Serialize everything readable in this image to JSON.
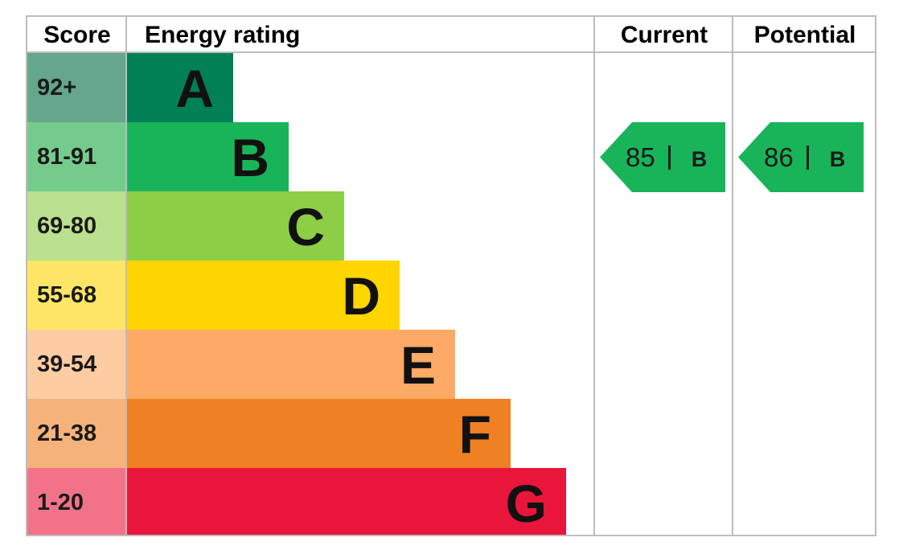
{
  "chart_data": {
    "type": "bar",
    "headers": {
      "score": "Score",
      "rating": "Energy rating",
      "current": "Current",
      "potential": "Potential"
    },
    "bands": [
      {
        "letter": "A",
        "range": "92+",
        "color": "#008054",
        "score_color": "#66a68a"
      },
      {
        "letter": "B",
        "range": "81-91",
        "color": "#19b459",
        "score_color": "#75cb8c"
      },
      {
        "letter": "C",
        "range": "69-80",
        "color": "#8dce46",
        "score_color": "#bbe08f"
      },
      {
        "letter": "D",
        "range": "55-68",
        "color": "#ffd500",
        "score_color": "#ffe566"
      },
      {
        "letter": "E",
        "range": "39-54",
        "color": "#fcaa65",
        "score_color": "#fdcca3"
      },
      {
        "letter": "F",
        "range": "21-38",
        "color": "#ef8023",
        "score_color": "#f5b37b"
      },
      {
        "letter": "G",
        "range": "1-20",
        "color": "#e9153b",
        "score_color": "#f27389"
      }
    ],
    "current": {
      "score": "85",
      "band": "B",
      "color": "#19b459"
    },
    "potential": {
      "score": "86",
      "band": "B",
      "color": "#19b459"
    }
  }
}
